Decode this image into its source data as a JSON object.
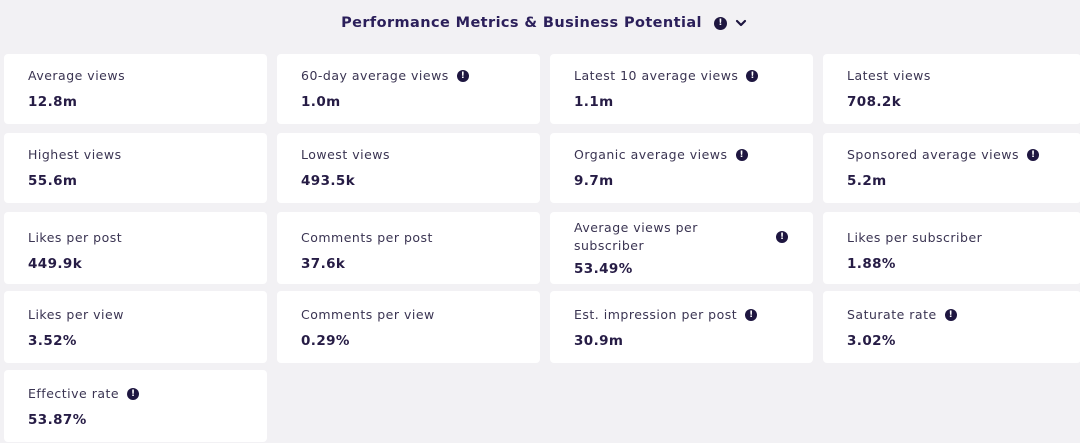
{
  "header": {
    "title": "Performance Metrics & Business Potential"
  },
  "metrics": [
    {
      "label": "Average views",
      "value": "12.8m",
      "info": false
    },
    {
      "label": "60-day average views",
      "value": "1.0m",
      "info": true
    },
    {
      "label": "Latest 10 average views",
      "value": "1.1m",
      "info": true
    },
    {
      "label": "Latest views",
      "value": "708.2k",
      "info": false
    },
    {
      "label": "Highest views",
      "value": "55.6m",
      "info": false
    },
    {
      "label": "Lowest views",
      "value": "493.5k",
      "info": false
    },
    {
      "label": "Organic average views",
      "value": "9.7m",
      "info": true
    },
    {
      "label": "Sponsored average views",
      "value": "5.2m",
      "info": true
    },
    {
      "label": "Likes per post",
      "value": "449.9k",
      "info": false
    },
    {
      "label": "Comments per post",
      "value": "37.6k",
      "info": false
    },
    {
      "label": "Average views per subscriber",
      "value": "53.49%",
      "info": true
    },
    {
      "label": "Likes per subscriber",
      "value": "1.88%",
      "info": false
    },
    {
      "label": "Likes per view",
      "value": "3.52%",
      "info": false
    },
    {
      "label": "Comments per view",
      "value": "0.29%",
      "info": false
    },
    {
      "label": "Est. impression per post",
      "value": "30.9m",
      "info": true
    },
    {
      "label": "Saturate rate",
      "value": "3.02%",
      "info": true
    },
    {
      "label": "Effective rate",
      "value": "53.87%",
      "info": true
    }
  ]
}
